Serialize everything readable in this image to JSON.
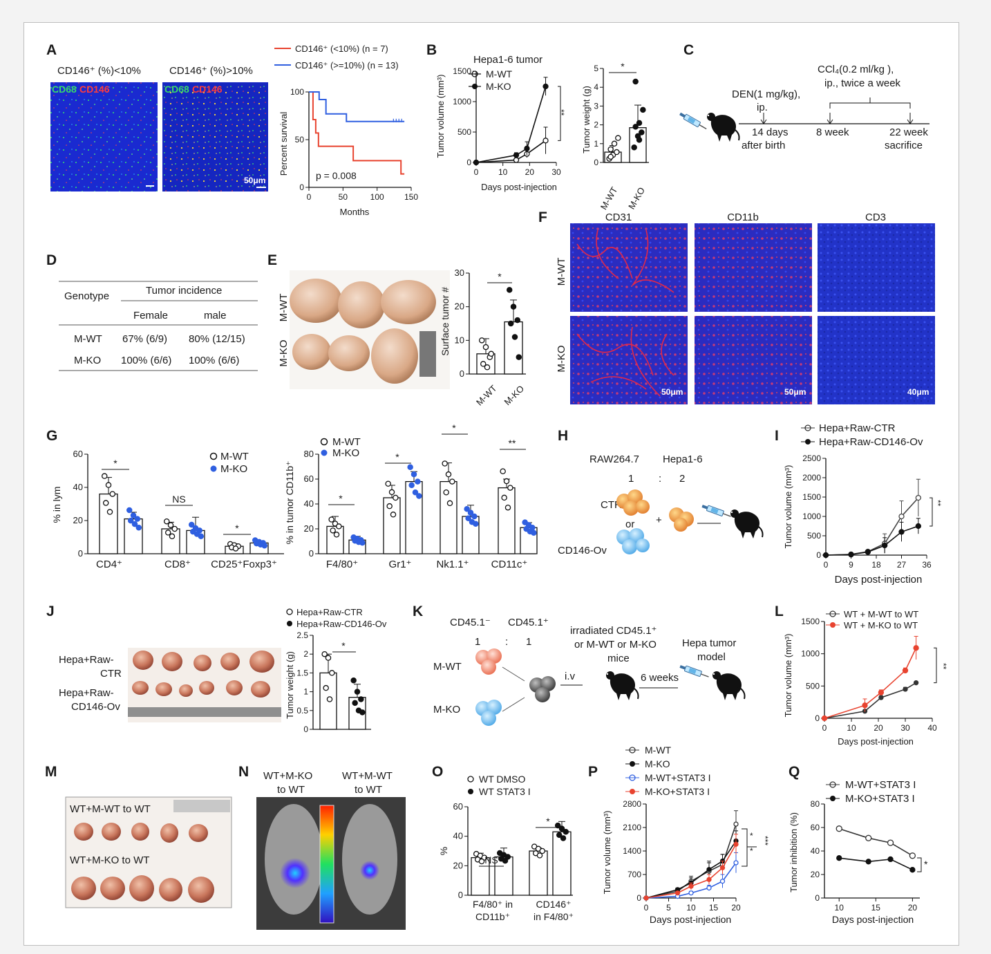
{
  "panels": {
    "A": {
      "label": "A",
      "img1_title": "CD146⁺ (%)<10%",
      "img2_title": "CD146⁺ (%)>10%",
      "stain_green": "CD68",
      "stain_red": "CD146",
      "scale": "50μm",
      "legend": [
        "CD146⁺ (<10%) (n = 7)",
        "CD146⁺ (>=10%) (n = 13)"
      ],
      "ylabel": "Percent survival",
      "xlabel": "Months",
      "pvalue": "p = 0.008"
    },
    "B": {
      "label": "B",
      "title": "Hepa1-6 tumor",
      "legend": [
        "M-WT",
        "M-KO"
      ],
      "ylabel": "Tumor volume (mm³)",
      "xlabel": "Days post-injection",
      "sig1": "**",
      "bar_ylabel": "Tumor weight (g)",
      "bar_sig": "*",
      "bar_groups": [
        "M-WT",
        "M-KO"
      ]
    },
    "C": {
      "label": "C",
      "den": "DEN(1 mg/kg),",
      "den2": "ip.",
      "ccl4": "CCl₄(0.2 ml/kg ),",
      "ccl4b": "ip., twice a week",
      "t1a": "14 days",
      "t1b": "after birth",
      "t2": "8 week",
      "t3a": "22 week",
      "t3b": "sacrifice"
    },
    "D": {
      "label": "D",
      "h_genotype": "Genotype",
      "h_incidence": "Tumor incidence",
      "h_female": "Female",
      "h_male": "male",
      "rows": [
        {
          "g": "M-WT",
          "f": "67% (6/9)",
          "m": "80% (12/15)"
        },
        {
          "g": "M-KO",
          "f": "100% (6/6)",
          "m": "100% (6/6)"
        }
      ]
    },
    "E": {
      "label": "E",
      "row1": "M-WT",
      "row2": "M-KO",
      "ylabel": "Surface tumor #",
      "groups": [
        "M-WT",
        "M-KO"
      ],
      "sig": "*"
    },
    "F": {
      "label": "F",
      "cols": [
        "CD31",
        "CD11b",
        "CD3"
      ],
      "rows": [
        "M-WT",
        "M-KO"
      ],
      "scales": [
        "50μm",
        "50μm",
        "40μm"
      ]
    },
    "G": {
      "label": "G",
      "legend": [
        "M-WT",
        "M-KO"
      ],
      "ylabel1": "% in lym",
      "ylabel2": "% in tumor CD11b⁺",
      "cats1": [
        "CD4⁺",
        "CD8⁺",
        "CD25⁺Foxp3⁺"
      ],
      "sigs1": [
        "*",
        "NS",
        "*"
      ],
      "cats2": [
        "F4/80⁺",
        "Gr1⁺",
        "Nk1.1⁺",
        "CD11c⁺"
      ],
      "sigs2": [
        "*",
        "*",
        "*",
        "**"
      ]
    },
    "H": {
      "label": "H",
      "c1": "RAW264.7",
      "c2": "Hepa1-6",
      "r1": "1",
      "colon": ":",
      "r2": "2",
      "ctr": "CTR",
      "or": "or",
      "ov": "CD146-Ov",
      "plus": "+"
    },
    "I": {
      "label": "I",
      "legend": [
        "Hepa+Raw-CTR",
        "Hepa+Raw-CD146-Ov"
      ],
      "ylabel": "Tumor volume (mm³)",
      "xlabel": "Days post-injection",
      "sig": "**"
    },
    "J": {
      "label": "J",
      "legend": [
        "Hepa+Raw-CTR",
        "Hepa+Raw-CD146-Ov"
      ],
      "row1a": "Hepa+Raw-",
      "row1b": "CTR",
      "row2a": "Hepa+Raw-",
      "row2b": "CD146-Ov",
      "ylabel": "Tumor weight (g)",
      "sig": "*"
    },
    "K": {
      "label": "K",
      "c1": "CD45.1⁻",
      "c2": "CD45.1⁺",
      "r1": "1",
      "colon": ":",
      "r2": "1",
      "wt": "M-WT",
      "ko": "M-KO",
      "iv": "i.v",
      "irr1": "irradiated CD45.1⁺",
      "irr2": "or M-WT or M-KO",
      "irr3": "mice",
      "weeks": "6 weeks",
      "model1": "Hepa tumor",
      "model2": "model"
    },
    "L": {
      "label": "L",
      "legend": [
        "WT + M-WT to WT",
        "WT + M-KO to WT"
      ],
      "ylabel": "Tumor volume (mm³)",
      "xlabel": "Days post-injection",
      "sig": "**"
    },
    "M": {
      "label": "M",
      "row1": "WT+M-WT to WT",
      "row2": "WT+M-KO to WT"
    },
    "N": {
      "label": "N",
      "m1a": "WT+M-KO",
      "m1b": "to WT",
      "m2a": "WT+M-WT",
      "m2b": "to WT"
    },
    "O": {
      "label": "O",
      "legend": [
        "WT DMSO",
        "WT STAT3 I"
      ],
      "ylabel": "%",
      "cat1a": "F4/80⁺ in",
      "cat1b": "CD11b⁺",
      "cat2a": "CD146⁺",
      "cat2b": "in F4/80⁺",
      "sigs": [
        "NS",
        "*"
      ]
    },
    "P": {
      "label": "P",
      "legend": [
        "M-WT",
        "M-KO",
        "M-WT+STAT3 I",
        "M-KO+STAT3 I"
      ],
      "ylabel": "Tumor volume (mm³)",
      "xlabel": "Days post-injection",
      "sigs": [
        "*",
        "*",
        "***"
      ]
    },
    "Q": {
      "label": "Q",
      "legend": [
        "M-WT+STAT3 I",
        "M-KO+STAT3 I"
      ],
      "ylabel": "Tumor inhibition (%)",
      "xlabel": "Days post-injection",
      "sig": "*"
    }
  },
  "chart_data": [
    {
      "panel": "A",
      "type": "line",
      "series": [
        {
          "name": "CD146⁺ (<10%) (n = 7)",
          "x": [
            0,
            6,
            6,
            10,
            10,
            14,
            14,
            65,
            65,
            135,
            135,
            140
          ],
          "y": [
            100,
            100,
            71,
            71,
            57,
            57,
            43,
            43,
            28,
            28,
            14,
            14
          ]
        },
        {
          "name": "CD146⁺ (>=10%) (n = 13)",
          "x": [
            0,
            15,
            15,
            25,
            25,
            55,
            55,
            140
          ],
          "y": [
            100,
            100,
            92,
            92,
            77,
            77,
            69,
            69
          ]
        }
      ],
      "xticks": [
        0,
        50,
        100,
        150
      ],
      "yticks": [
        0,
        50,
        100
      ],
      "xlim": [
        0,
        150
      ],
      "ylim": [
        0,
        100
      ],
      "xlabel": "Months",
      "ylabel": "Percent survival"
    },
    {
      "panel": "B-line",
      "type": "line",
      "title": "Hepa1-6 tumor",
      "x": [
        0,
        15,
        19,
        26
      ],
      "series": [
        {
          "name": "M-WT",
          "values": [
            0,
            40,
            140,
            360
          ],
          "err": [
            0,
            20,
            60,
            220
          ]
        },
        {
          "name": "M-KO",
          "values": [
            0,
            120,
            230,
            1250
          ],
          "err": [
            0,
            40,
            110,
            150
          ]
        }
      ],
      "xticks": [
        0,
        10,
        20,
        30
      ],
      "yticks": [
        0,
        500,
        1000,
        1500
      ],
      "xlim": [
        0,
        30
      ],
      "ylim": [
        0,
        1500
      ],
      "xlabel": "Days post-injection",
      "ylabel": "Tumor volume (mm³)"
    },
    {
      "panel": "B-bar",
      "type": "bar",
      "categories": [
        "M-WT",
        "M-KO"
      ],
      "values": [
        0.55,
        1.85
      ],
      "err": [
        0.35,
        1.2
      ],
      "points": [
        [
          0.2,
          0.4,
          0.55,
          0.7,
          1.0,
          1.3,
          0.3
        ],
        [
          0.8,
          1.4,
          1.6,
          1.9,
          2.1,
          2.8,
          4.3,
          1.2
        ]
      ],
      "yticks": [
        0,
        1,
        2,
        3,
        4,
        5
      ],
      "ylim": [
        0,
        5
      ],
      "ylabel": "Tumor weight (g)"
    },
    {
      "panel": "E",
      "type": "bar",
      "categories": [
        "M-WT",
        "M-KO"
      ],
      "values": [
        6,
        15.5
      ],
      "err": [
        4.5,
        6.5
      ],
      "points": [
        [
          10,
          8,
          5,
          3,
          2,
          6
        ],
        [
          25,
          20,
          16,
          15,
          11,
          5
        ]
      ],
      "yticks": [
        0,
        10,
        20,
        30
      ],
      "ylim": [
        0,
        30
      ],
      "ylabel": "Surface tumor #"
    },
    {
      "panel": "G-left",
      "type": "bar",
      "categories": [
        "CD4⁺",
        "CD8⁺",
        "CD25⁺Foxp3⁺"
      ],
      "series": [
        {
          "name": "M-WT",
          "values": [
            36,
            15,
            4.5
          ],
          "err": [
            10,
            4,
            1.5
          ]
        },
        {
          "name": "M-KO",
          "values": [
            21,
            14,
            6.5
          ],
          "err": [
            4,
            8,
            1
          ]
        }
      ],
      "yticks": [
        0,
        20,
        40,
        60
      ],
      "ylim": [
        0,
        60
      ],
      "ylabel": "% in lym"
    },
    {
      "panel": "G-right",
      "type": "bar",
      "categories": [
        "F4/80⁺",
        "Gr1⁺",
        "Nk1.1⁺",
        "CD11c⁺"
      ],
      "series": [
        {
          "name": "M-WT",
          "values": [
            22,
            45,
            58,
            53
          ],
          "err": [
            8,
            10,
            15,
            7
          ]
        },
        {
          "name": "M-KO",
          "values": [
            11,
            58,
            30,
            21
          ],
          "err": [
            3,
            8,
            9,
            4
          ]
        }
      ],
      "yticks": [
        0,
        20,
        40,
        60,
        80
      ],
      "ylim": [
        0,
        80
      ],
      "ylabel": "% in tumor CD11b⁺"
    },
    {
      "panel": "I",
      "type": "line",
      "x": [
        0,
        9,
        15,
        21,
        27,
        33
      ],
      "series": [
        {
          "name": "Hepa+Raw-CTR",
          "values": [
            0,
            20,
            90,
            300,
            1000,
            1480
          ],
          "err": [
            0,
            10,
            30,
            250,
            400,
            480
          ]
        },
        {
          "name": "Hepa+Raw-CD146-Ov",
          "values": [
            0,
            15,
            80,
            250,
            600,
            750
          ],
          "err": [
            0,
            10,
            30,
            200,
            250,
            200
          ]
        }
      ],
      "xticks": [
        0,
        9,
        18,
        27,
        36
      ],
      "yticks": [
        0,
        500,
        1000,
        1500,
        2000,
        2500
      ],
      "xlim": [
        0,
        36
      ],
      "ylim": [
        0,
        2500
      ],
      "xlabel": "Days post-injection",
      "ylabel": "Tumor volume (mm³)"
    },
    {
      "panel": "J",
      "type": "bar",
      "categories": [
        "Hepa+Raw-CTR",
        "Hepa+Raw-CD146-Ov"
      ],
      "values": [
        1.5,
        0.85
      ],
      "err": [
        0.5,
        0.35
      ],
      "points": [
        [
          2.0,
          1.9,
          1.5,
          1.1,
          0.8
        ],
        [
          1.3,
          1.0,
          0.8,
          0.7,
          0.5,
          0.45
        ]
      ],
      "yticks": [
        0,
        0.5,
        1.0,
        1.5,
        2.0,
        2.5
      ],
      "ylim": [
        0,
        2.5
      ],
      "ylabel": "Tumor weight (g)"
    },
    {
      "panel": "L",
      "type": "line",
      "x": [
        0,
        15,
        21,
        30,
        34
      ],
      "series": [
        {
          "name": "WT + M-WT to WT",
          "values": [
            0,
            110,
            320,
            450,
            550
          ],
          "err": [
            0,
            20,
            30,
            30,
            20
          ]
        },
        {
          "name": "WT + M-KO to WT",
          "values": [
            0,
            200,
            400,
            740,
            1090
          ],
          "err": [
            0,
            100,
            40,
            40,
            180
          ]
        }
      ],
      "xticks": [
        0,
        10,
        20,
        30,
        40
      ],
      "yticks": [
        0,
        500,
        1000,
        1500
      ],
      "xlim": [
        0,
        40
      ],
      "ylim": [
        0,
        1500
      ],
      "xlabel": "Days post-injection",
      "ylabel": "Tumor volume (mm³)"
    },
    {
      "panel": "O",
      "type": "bar",
      "categories": [
        "F4/80⁺ in CD11b⁺",
        "CD146⁺ in F4/80⁺"
      ],
      "series": [
        {
          "name": "WT DMSO",
          "values": [
            25.5,
            30
          ],
          "err": [
            3,
            2
          ]
        },
        {
          "name": "WT STAT3 I",
          "values": [
            26,
            43
          ],
          "err": [
            6,
            7
          ]
        }
      ],
      "yticks": [
        0,
        20,
        40,
        60
      ],
      "ylim": [
        0,
        60
      ],
      "ylabel": "%"
    },
    {
      "panel": "P",
      "type": "line",
      "x": [
        0,
        7,
        10,
        14,
        17,
        20
      ],
      "series": [
        {
          "name": "M-WT",
          "values": [
            0,
            200,
            500,
            800,
            1000,
            2200
          ],
          "err": [
            0,
            60,
            150,
            300,
            300,
            400
          ]
        },
        {
          "name": "M-KO",
          "values": [
            0,
            250,
            450,
            850,
            1100,
            1700
          ],
          "err": [
            0,
            50,
            150,
            200,
            200,
            300
          ]
        },
        {
          "name": "M-WT+STAT3 I",
          "values": [
            0,
            50,
            150,
            300,
            500,
            1050
          ],
          "err": [
            0,
            20,
            50,
            80,
            200,
            300
          ]
        },
        {
          "name": "M-KO+STAT3 I",
          "values": [
            0,
            150,
            350,
            550,
            900,
            1600
          ],
          "err": [
            0,
            40,
            100,
            150,
            200,
            300
          ]
        }
      ],
      "xticks": [
        0,
        5,
        10,
        15,
        20
      ],
      "yticks": [
        0,
        700,
        1400,
        2100,
        2800
      ],
      "xlim": [
        0,
        20
      ],
      "ylim": [
        0,
        2800
      ],
      "xlabel": "Days post-injection",
      "ylabel": "Tumor volume (mm³)"
    },
    {
      "panel": "Q",
      "type": "line",
      "x": [
        10,
        14,
        17,
        20
      ],
      "series": [
        {
          "name": "M-WT+STAT3 I",
          "values": [
            59,
            51,
            47,
            36
          ]
        },
        {
          "name": "M-KO+STAT3 I",
          "values": [
            34,
            31,
            33,
            24
          ]
        }
      ],
      "xticks": [
        10,
        15,
        20
      ],
      "yticks": [
        0,
        20,
        40,
        60,
        80
      ],
      "xlim": [
        8,
        21
      ],
      "ylim": [
        0,
        80
      ],
      "xlabel": "Days post-injection",
      "ylabel": "Tumor inhibition (%)"
    }
  ],
  "colors": {
    "red": "#e8432f",
    "blue": "#2f5fe0",
    "darkgray": "#333333",
    "black": "#111111"
  }
}
